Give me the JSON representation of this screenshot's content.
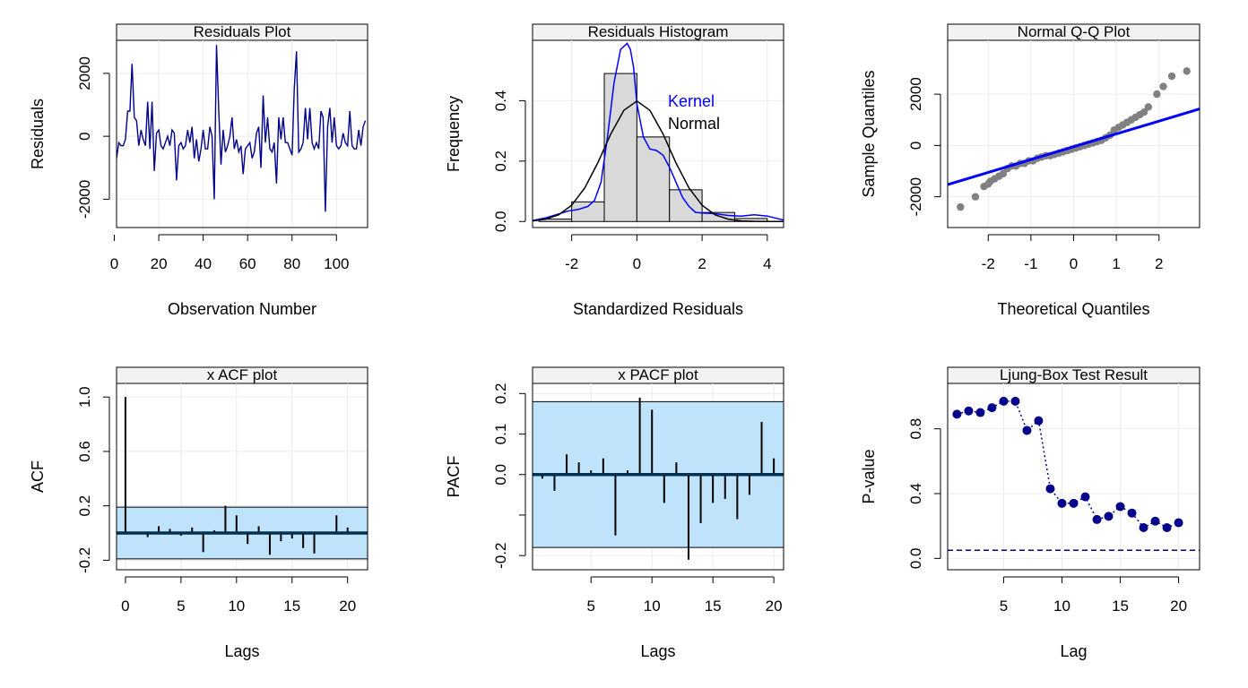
{
  "colors": {
    "navy": "#00008B",
    "blue": "#0000FF",
    "grey_points": "#808080",
    "band_fill": "#BFE3FA",
    "strip_fill": "#F2F2F2",
    "hist_fill": "#D9D9D9",
    "grid": "#EBEBEB",
    "dark_line": "#003050"
  },
  "chart_data": [
    {
      "id": "residuals",
      "type": "line",
      "strip_title": "Residuals Plot",
      "xlabel": "Observation Number",
      "ylabel": "Residuals",
      "xlim": [
        1,
        114
      ],
      "ylim": [
        -2900,
        3050
      ],
      "xticks": [
        0,
        20,
        40,
        60,
        80,
        100
      ],
      "xtick_labels": [
        "0",
        "20",
        "40",
        "60",
        "80",
        "100"
      ],
      "yticks": [
        -2000,
        0,
        2000
      ],
      "ytick_labels": [
        "-2000",
        "0",
        "2000"
      ],
      "series": [
        {
          "x": [
            1,
            2,
            3,
            4,
            5,
            6,
            7,
            8,
            9,
            10,
            11,
            12,
            13,
            14,
            15,
            16,
            17,
            18,
            19,
            20,
            21,
            22,
            23,
            24,
            25,
            26,
            27,
            28,
            29,
            30,
            31,
            32,
            33,
            34,
            35,
            36,
            37,
            38,
            39,
            40,
            41,
            42,
            43,
            44,
            45,
            46,
            47,
            48,
            49,
            50,
            51,
            52,
            53,
            54,
            55,
            56,
            57,
            58,
            59,
            60,
            61,
            62,
            63,
            64,
            65,
            66,
            67,
            68,
            69,
            70,
            71,
            72,
            73,
            74,
            75,
            76,
            77,
            78,
            79,
            80,
            81,
            82,
            83,
            84,
            85,
            86,
            87,
            88,
            89,
            90,
            91,
            92,
            93,
            94,
            95,
            96,
            97,
            98,
            99,
            100,
            101,
            102,
            103,
            104,
            105,
            106,
            107,
            108,
            109,
            110,
            111,
            112,
            113
          ],
          "y": [
            -700,
            -200,
            -300,
            -300,
            -100,
            800,
            800,
            2300,
            600,
            500,
            -300,
            200,
            -100,
            -300,
            1100,
            -400,
            1100,
            -1100,
            100,
            200,
            -300,
            -400,
            -200,
            0,
            -300,
            200,
            100,
            -1400,
            -300,
            -200,
            -400,
            -300,
            200,
            -200,
            300,
            -700,
            -100,
            -800,
            -400,
            200,
            -400,
            -400,
            300,
            0,
            -2000,
            2900,
            800,
            -900,
            200,
            -500,
            -300,
            0,
            600,
            -400,
            -100,
            -500,
            -300,
            -1200,
            -400,
            -300,
            -200,
            -700,
            -500,
            100,
            300,
            -1000,
            1300,
            -200,
            600,
            -400,
            -500,
            -200,
            -1500,
            600,
            -100,
            600,
            -200,
            -200,
            -400,
            -600,
            1500,
            2700,
            -500,
            -400,
            -200,
            900,
            -100,
            900,
            -200,
            -400,
            -200,
            -400,
            800,
            600,
            -2400,
            300,
            900,
            -200,
            600,
            -300,
            -400,
            -300,
            100,
            -200,
            -300,
            800,
            -300,
            -400,
            -400,
            200,
            -300,
            300,
            500
          ]
        }
      ]
    },
    {
      "id": "histogram",
      "type": "bar",
      "strip_title": "Residuals Histogram",
      "xlabel": "Standardized Residuals",
      "ylabel": "Frequency",
      "xlim": [
        -3.2,
        4.5
      ],
      "ylim": [
        -0.02,
        0.6
      ],
      "xticks": [
        -2,
        0,
        2,
        4
      ],
      "xtick_labels": [
        "-2",
        "0",
        "2",
        "4"
      ],
      "yticks": [
        0.0,
        0.2,
        0.4
      ],
      "ytick_labels": [
        "0.0",
        "0.2",
        "0.4"
      ],
      "bins": [
        {
          "x0": -3,
          "x1": -2,
          "density": 0.008
        },
        {
          "x0": -2,
          "x1": -1,
          "density": 0.065
        },
        {
          "x0": -1,
          "x1": 0,
          "density": 0.49
        },
        {
          "x0": 0,
          "x1": 1,
          "density": 0.28
        },
        {
          "x0": 1,
          "x1": 2,
          "density": 0.105
        },
        {
          "x0": 2,
          "x1": 3,
          "density": 0.03
        },
        {
          "x0": 3,
          "x1": 4,
          "density": 0.01
        }
      ],
      "series": [
        {
          "name": "Kernel",
          "color": "#0000FF",
          "x": [
            -3.2,
            -2.8,
            -2.4,
            -2.1,
            -1.8,
            -1.5,
            -1.3,
            -1.1,
            -0.9,
            -0.7,
            -0.5,
            -0.3,
            -0.2,
            -0.1,
            0.0,
            0.2,
            0.4,
            0.6,
            0.8,
            1.0,
            1.2,
            1.4,
            1.6,
            1.8,
            2.0,
            2.4,
            2.8,
            3.2,
            3.6,
            4.0,
            4.5
          ],
          "y": [
            0.003,
            0.012,
            0.025,
            0.035,
            0.04,
            0.05,
            0.07,
            0.13,
            0.28,
            0.46,
            0.57,
            0.59,
            0.57,
            0.51,
            0.39,
            0.28,
            0.24,
            0.235,
            0.22,
            0.18,
            0.13,
            0.08,
            0.05,
            0.03,
            0.028,
            0.026,
            0.02,
            0.018,
            0.022,
            0.018,
            0.005
          ]
        },
        {
          "name": "Normal",
          "color": "#000000",
          "x": [
            -3.2,
            -2.8,
            -2.4,
            -2.0,
            -1.6,
            -1.2,
            -0.8,
            -0.4,
            0.0,
            0.4,
            0.8,
            1.2,
            1.6,
            2.0,
            2.4,
            2.8,
            3.2,
            3.6,
            4.0,
            4.5
          ],
          "y": [
            0.002,
            0.008,
            0.022,
            0.054,
            0.111,
            0.194,
            0.29,
            0.368,
            0.399,
            0.368,
            0.29,
            0.194,
            0.111,
            0.054,
            0.022,
            0.008,
            0.002,
            0.0006,
            0.0001,
            0.0
          ]
        }
      ],
      "legend": [
        "Kernel",
        "Normal"
      ]
    },
    {
      "id": "qq",
      "type": "scatter",
      "strip_title": "Normal Q-Q Plot",
      "xlabel": "Theoretical Quantiles",
      "ylabel": "Sample Quantiles",
      "xlim": [
        -2.95,
        2.95
      ],
      "ylim": [
        -3200,
        4100
      ],
      "xticks": [
        -2,
        -1,
        0,
        1,
        2
      ],
      "xtick_labels": [
        "-2",
        "-1",
        "0",
        "1",
        "2"
      ],
      "yticks": [
        -2000,
        0,
        2000
      ],
      "ytick_labels": [
        "-2000",
        "0",
        "2000"
      ],
      "points": {
        "x": [
          -2.65,
          -2.3,
          -2.1,
          -2.0,
          -1.95,
          -1.85,
          -1.75,
          -1.65,
          -1.55,
          -1.45,
          -1.35,
          -1.25,
          -1.15,
          -1.05,
          -0.95,
          -0.85,
          -0.75,
          -0.65,
          -0.55,
          -0.45,
          -0.35,
          -0.25,
          -0.15,
          -0.05,
          0.05,
          0.15,
          0.25,
          0.35,
          0.45,
          0.55,
          0.65,
          0.75,
          0.85,
          0.95,
          1.05,
          1.15,
          1.25,
          1.35,
          1.45,
          1.55,
          1.65,
          1.75,
          1.95,
          2.1,
          2.3,
          2.65
        ],
        "y": [
          -2400,
          -2000,
          -1600,
          -1500,
          -1400,
          -1300,
          -1200,
          -1100,
          -900,
          -800,
          -800,
          -700,
          -700,
          -600,
          -600,
          -500,
          -450,
          -400,
          -400,
          -350,
          -300,
          -250,
          -200,
          -150,
          -100,
          -50,
          0,
          50,
          100,
          150,
          200,
          300,
          400,
          600,
          700,
          800,
          900,
          1000,
          1100,
          1200,
          1300,
          1500,
          2000,
          2300,
          2700,
          2900
        ]
      },
      "reference_line": {
        "intercept": -50,
        "slope": 500
      }
    },
    {
      "id": "acf",
      "type": "bar",
      "strip_title": "x ACF plot",
      "xlabel": "Lags",
      "ylabel": "ACF",
      "xlim": [
        -0.8,
        21.8
      ],
      "ylim": [
        -0.27,
        1.1
      ],
      "xticks": [
        0,
        5,
        10,
        15,
        20
      ],
      "xtick_labels": [
        "0",
        "5",
        "10",
        "15",
        "20"
      ],
      "yticks": [
        -0.2,
        0.2,
        0.6,
        1.0
      ],
      "ytick_labels": [
        "-0.2",
        "0.2",
        "0.6",
        "1.0"
      ],
      "lags": [
        0,
        1,
        2,
        3,
        4,
        5,
        6,
        7,
        8,
        9,
        10,
        11,
        12,
        13,
        14,
        15,
        16,
        17,
        18,
        19,
        20
      ],
      "values": [
        1.0,
        -0.01,
        -0.03,
        0.05,
        0.03,
        -0.02,
        0.04,
        -0.14,
        0.02,
        0.2,
        0.13,
        -0.08,
        0.05,
        -0.16,
        -0.06,
        -0.04,
        -0.11,
        -0.15,
        0.01,
        0.13,
        0.04
      ],
      "confidence_limit": 0.19
    },
    {
      "id": "pacf",
      "type": "bar",
      "strip_title": "x PACF plot",
      "xlabel": "Lags",
      "ylabel": "PACF",
      "xlim": [
        0.2,
        20.8
      ],
      "ylim": [
        -0.235,
        0.225
      ],
      "xticks": [
        5,
        10,
        15,
        20
      ],
      "xtick_labels": [
        "5",
        "10",
        "15",
        "20"
      ],
      "yticks": [
        -0.2,
        -0.1,
        0.0,
        0.1,
        0.2
      ],
      "ytick_labels": [
        "-0.2",
        "",
        "0.0",
        "0.1",
        "0.2"
      ],
      "lags": [
        1,
        2,
        3,
        4,
        5,
        6,
        7,
        8,
        9,
        10,
        11,
        12,
        13,
        14,
        15,
        16,
        17,
        18,
        19,
        20
      ],
      "values": [
        -0.01,
        -0.04,
        0.05,
        0.03,
        0.01,
        0.04,
        -0.15,
        0.01,
        0.19,
        0.16,
        -0.07,
        0.03,
        -0.21,
        -0.12,
        -0.07,
        -0.06,
        -0.11,
        -0.05,
        0.13,
        0.04
      ],
      "confidence_limit": 0.18
    },
    {
      "id": "ljungbox",
      "type": "scatter",
      "strip_title": "Ljung-Box Test Result",
      "xlabel": "Lag",
      "ylabel": "P-value",
      "xlim": [
        0.2,
        21.8
      ],
      "ylim": [
        -0.07,
        1.08
      ],
      "xticks": [
        5,
        10,
        15,
        20
      ],
      "xtick_labels": [
        "5",
        "10",
        "15",
        "20"
      ],
      "yticks": [
        0.0,
        0.4,
        0.8
      ],
      "ytick_labels": [
        "0.0",
        "0.4",
        "0.8"
      ],
      "x": [
        1,
        2,
        3,
        4,
        5,
        6,
        7,
        8,
        9,
        10,
        11,
        12,
        13,
        14,
        15,
        16,
        17,
        18,
        19,
        20
      ],
      "y": [
        0.89,
        0.91,
        0.9,
        0.93,
        0.97,
        0.97,
        0.79,
        0.85,
        0.43,
        0.34,
        0.34,
        0.38,
        0.24,
        0.26,
        0.32,
        0.28,
        0.19,
        0.23,
        0.19,
        0.22
      ],
      "significance_line": 0.05
    }
  ]
}
